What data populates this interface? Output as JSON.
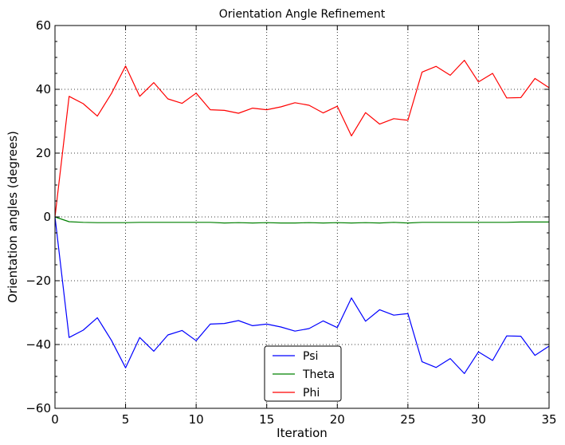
{
  "chart_data": {
    "type": "line",
    "title": "Orientation Angle Refinement",
    "xlabel": "Iteration",
    "ylabel": "Orientation angles (degrees)",
    "xlim": [
      0,
      35
    ],
    "ylim": [
      -60,
      60
    ],
    "xticks": [
      0,
      5,
      10,
      15,
      20,
      25,
      30,
      35
    ],
    "yticks": [
      -60,
      -40,
      -20,
      0,
      20,
      40,
      60
    ],
    "ytick_labels": [
      "−60",
      "−40",
      "−20",
      "0",
      "20",
      "40",
      "60"
    ],
    "grid": true,
    "grid_style": "dotted",
    "legend_position": "bottom-center",
    "x": [
      0,
      1,
      2,
      3,
      4,
      5,
      6,
      7,
      8,
      9,
      10,
      11,
      12,
      13,
      14,
      15,
      16,
      17,
      18,
      19,
      20,
      21,
      22,
      23,
      24,
      25,
      26,
      27,
      28,
      29,
      30,
      31,
      32,
      33,
      34,
      35
    ],
    "series": [
      {
        "name": "Psi",
        "color": "#0000ff",
        "values": [
          0,
          -37.8,
          -35.5,
          -31.6,
          -38.7,
          -47.3,
          -37.8,
          -42.1,
          -37,
          -35.6,
          -38.8,
          -33.6,
          -33.4,
          -32.5,
          -34.1,
          -33.6,
          -34.5,
          -35.8,
          -35,
          -32.6,
          -34.7,
          -25.4,
          -32.7,
          -29.1,
          -30.8,
          -30.3,
          -45.4,
          -47.2,
          -44.4,
          -49.1,
          -42.3,
          -45,
          -37.3,
          -37.4,
          -43.4,
          -40.5
        ]
      },
      {
        "name": "Theta",
        "color": "#008000",
        "values": [
          0,
          -1.5,
          -1.7,
          -1.8,
          -1.8,
          -1.8,
          -1.7,
          -1.7,
          -1.7,
          -1.7,
          -1.7,
          -1.7,
          -1.9,
          -1.8,
          -1.9,
          -1.8,
          -1.9,
          -1.9,
          -1.8,
          -1.9,
          -1.8,
          -1.9,
          -1.8,
          -1.9,
          -1.7,
          -1.9,
          -1.7,
          -1.7,
          -1.7,
          -1.7,
          -1.7,
          -1.7,
          -1.7,
          -1.6,
          -1.6,
          -1.6
        ]
      },
      {
        "name": "Phi",
        "color": "#ff0000",
        "values": [
          0,
          37.8,
          35.5,
          31.6,
          38.7,
          47.3,
          37.8,
          42.1,
          37,
          35.6,
          38.8,
          33.6,
          33.4,
          32.5,
          34.1,
          33.6,
          34.5,
          35.8,
          35,
          32.6,
          34.7,
          25.4,
          32.7,
          29.1,
          30.8,
          30.3,
          45.4,
          47.2,
          44.4,
          49.1,
          42.3,
          45,
          37.3,
          37.4,
          43.4,
          40.5
        ]
      }
    ]
  }
}
